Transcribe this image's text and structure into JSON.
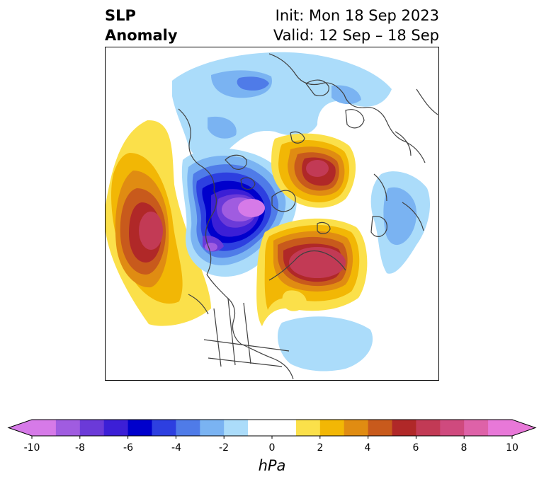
{
  "title": {
    "left_line1": "SLP",
    "left_line2": "Anomaly",
    "right_line1": "Init: Mon 18 Sep 2023",
    "right_line2": "Valid: 12 Sep – 18 Sep"
  },
  "colorbar": {
    "units": "hPa",
    "tick_labels": [
      "-10",
      "-8",
      "-6",
      "-4",
      "-2",
      "0",
      "2",
      "4",
      "6",
      "8",
      "10"
    ],
    "bins": [
      {
        "lo": -10,
        "hi": -9,
        "color": "#d67ae8"
      },
      {
        "lo": -9,
        "hi": -8,
        "color": "#a05ce0"
      },
      {
        "lo": -8,
        "hi": -7,
        "color": "#6b3ad8"
      },
      {
        "lo": -7,
        "hi": -6,
        "color": "#3c1fd6"
      },
      {
        "lo": -6,
        "hi": -5,
        "color": "#0000cc"
      },
      {
        "lo": -5,
        "hi": -4,
        "color": "#2d3fe0"
      },
      {
        "lo": -4,
        "hi": -3,
        "color": "#4f7be8"
      },
      {
        "lo": -3,
        "hi": -2,
        "color": "#7ab3f2"
      },
      {
        "lo": -2,
        "hi": -1,
        "color": "#abdcfa"
      },
      {
        "lo": -1,
        "hi": 1,
        "color": "#ffffff"
      },
      {
        "lo": 1,
        "hi": 2,
        "color": "#fbe04a"
      },
      {
        "lo": 2,
        "hi": 3,
        "color": "#f2b705"
      },
      {
        "lo": 3,
        "hi": 4,
        "color": "#e08c12"
      },
      {
        "lo": 4,
        "hi": 5,
        "color": "#c85a1c"
      },
      {
        "lo": 5,
        "hi": 6,
        "color": "#b02828"
      },
      {
        "lo": 6,
        "hi": 7,
        "color": "#c23a55"
      },
      {
        "lo": 7,
        "hi": 8,
        "color": "#cf4a7e"
      },
      {
        "lo": 8,
        "hi": 9,
        "color": "#de62a8"
      },
      {
        "lo": 9,
        "hi": 10,
        "color": "#e878d8"
      }
    ],
    "under_color": "#d67ae8",
    "over_color": "#e878d8"
  },
  "map": {
    "projection": "north-polar-stereographic",
    "coastline_color": "#404040",
    "anomaly_features": [
      {
        "name": "north-pacific-high",
        "peak_hpa": 7
      },
      {
        "name": "arctic-canada-low",
        "peak_hpa": -10
      },
      {
        "name": "siberia-high",
        "peak_hpa": 6
      },
      {
        "name": "west-canada-high",
        "peak_hpa": 7
      },
      {
        "name": "north-atlantic-low",
        "peak_hpa": -2
      },
      {
        "name": "europe-low",
        "peak_hpa": -4
      },
      {
        "name": "central-asia-low",
        "peak_hpa": -2
      }
    ]
  }
}
